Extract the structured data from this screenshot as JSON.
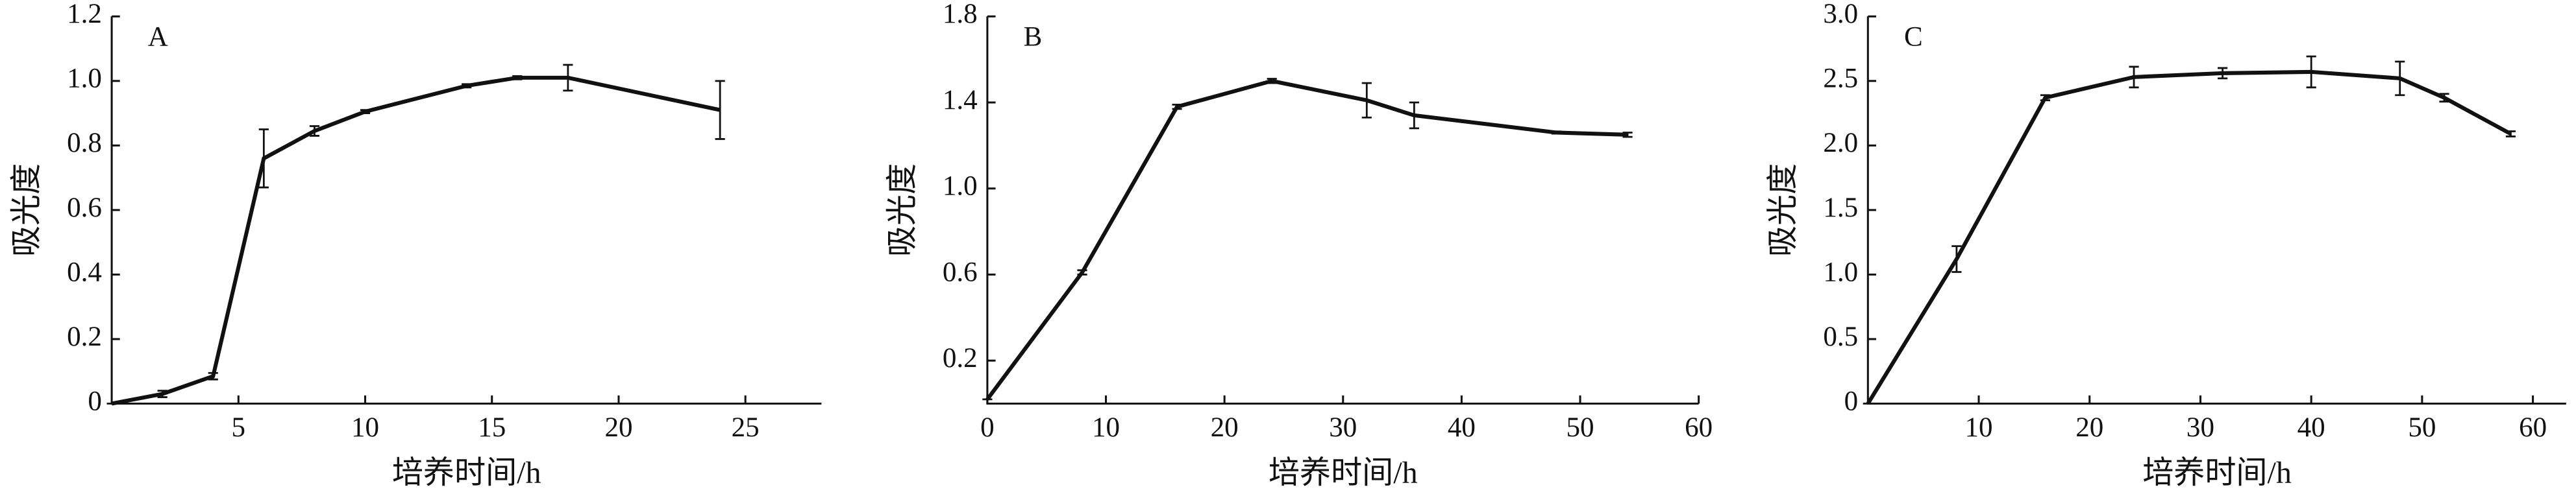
{
  "chart_data": [
    {
      "type": "line",
      "title": "A",
      "x_label": "培养时间/h",
      "y_label": "吸光度",
      "color": "#111111",
      "x": [
        0,
        2,
        4,
        6,
        8,
        10,
        14,
        16,
        18,
        24
      ],
      "values": [
        0,
        0.03,
        0.085,
        0.76,
        0.845,
        0.905,
        0.985,
        1.01,
        1.01,
        0.91
      ],
      "errors": [
        0,
        0.01,
        0.01,
        0.09,
        0.015,
        0.005,
        0.005,
        0.005,
        0.04,
        0.09
      ],
      "xlim": [
        0,
        28
      ],
      "xticks": [
        5,
        10,
        15,
        20,
        25
      ],
      "ylim": [
        0,
        1.2
      ],
      "yticks": [
        0,
        0.2,
        0.4,
        0.6,
        0.8,
        {
          "value": 1,
          "label": "1.0"
        },
        1.2
      ]
    },
    {
      "type": "line",
      "title": "B",
      "x_label": "培养时间/h",
      "y_label": "吸光度",
      "color": "#111111",
      "x": [
        0,
        8,
        16,
        24,
        32,
        36,
        48,
        54
      ],
      "values": [
        0.02,
        0.61,
        1.38,
        1.5,
        1.41,
        1.34,
        1.26,
        1.25
      ],
      "errors": [
        0,
        0.01,
        0.01,
        0.01,
        0.08,
        0.06,
        0.005,
        0.01
      ],
      "xlim": [
        0,
        60
      ],
      "xticks": [
        0,
        10,
        20,
        30,
        40,
        50,
        60
      ],
      "ylim": [
        0,
        1.8
      ],
      "yticks": [
        0.2,
        0.6,
        {
          "value": 1,
          "label": "1.0"
        },
        1.4,
        1.8
      ]
    },
    {
      "type": "line",
      "title": "C",
      "x_label": "培养时间/h",
      "y_label": "吸光度",
      "color": "#111111",
      "x": [
        0,
        8,
        16,
        24,
        32,
        40,
        48,
        52,
        58
      ],
      "values": [
        0,
        1.12,
        2.37,
        2.53,
        2.56,
        2.57,
        2.52,
        2.37,
        2.09
      ],
      "errors": [
        0,
        0.1,
        0.02,
        0.08,
        0.04,
        0.12,
        0.13,
        0.03,
        0.02
      ],
      "xlim": [
        0,
        63
      ],
      "xticks": [
        10,
        20,
        30,
        40,
        50,
        60
      ],
      "ylim": [
        0,
        3
      ],
      "yticks": [
        0,
        0.5,
        {
          "value": 1,
          "label": "1.0"
        },
        1.5,
        {
          "value": 2,
          "label": "2.0"
        },
        2.5,
        {
          "value": 3,
          "label": "3.0"
        }
      ]
    }
  ]
}
